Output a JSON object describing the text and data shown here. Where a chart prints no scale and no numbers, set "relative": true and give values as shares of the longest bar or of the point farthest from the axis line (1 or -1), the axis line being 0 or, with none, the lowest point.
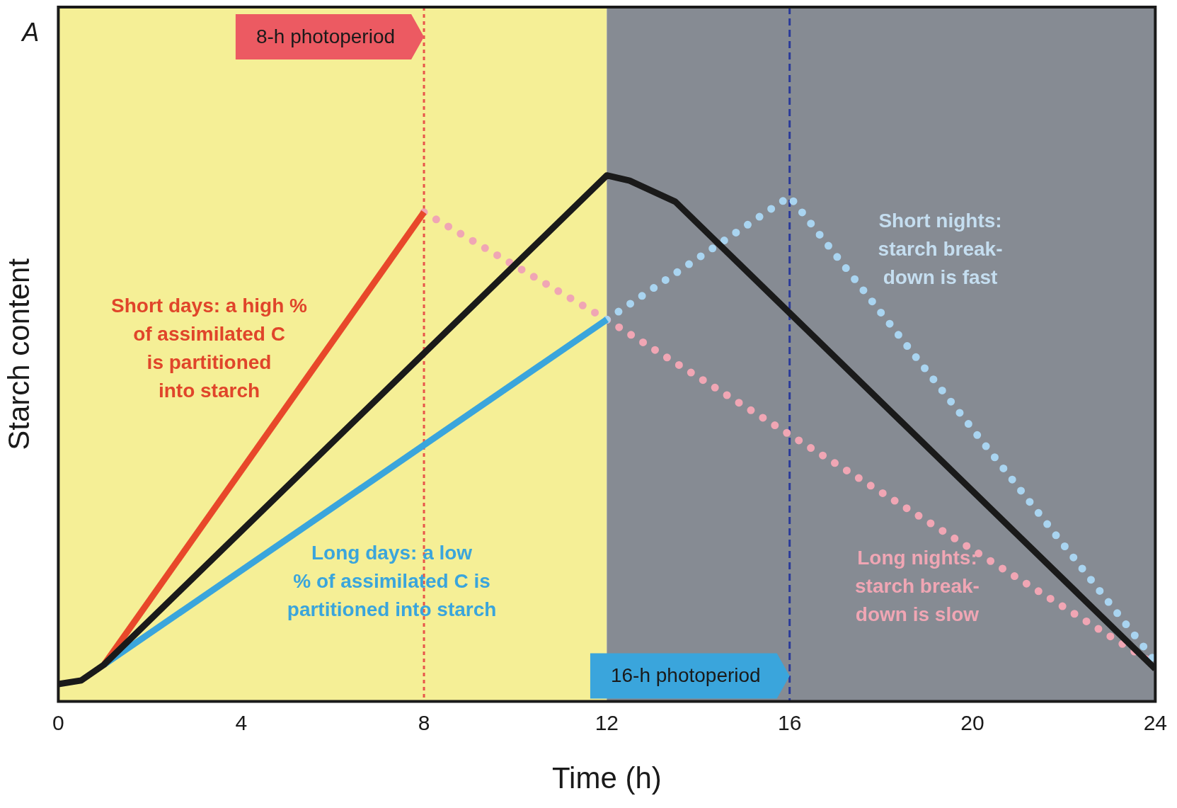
{
  "chart_data": {
    "type": "line",
    "title": "A",
    "xlabel": "Time (h)",
    "ylabel": "Starch content",
    "relative": true,
    "xlim": [
      0,
      24
    ],
    "xticks": [
      0,
      4,
      8,
      12,
      16,
      20,
      24
    ],
    "tick_labels": "x",
    "grid": false,
    "legend": false,
    "marker": "none",
    "series": [
      {
        "color": "#1a1a1a",
        "line_style": "solid",
        "x": [
          0,
          0.5,
          1,
          12,
          12.5,
          13.5,
          24
        ],
        "values": [
          0.033,
          0.04,
          0.07,
          1,
          0.99,
          0.95,
          0.062
        ]
      },
      {
        "color": "#e8482a",
        "line_style": "solid",
        "x": [
          1,
          8
        ],
        "values": [
          0.07,
          0.93
        ]
      },
      {
        "color": "#3aa5dc",
        "line_style": "solid",
        "x": [
          1,
          12
        ],
        "values": [
          0.07,
          0.726
        ]
      },
      {
        "color": "#a9d4f0",
        "line_style": "dotted",
        "x": [
          12,
          16,
          24
        ],
        "values": [
          0.726,
          0.96,
          0.076
        ]
      },
      {
        "color": "#f0a6b4",
        "line_style": "dotted",
        "x": [
          8,
          12,
          24
        ],
        "values": [
          0.93,
          0.726,
          0.07
        ]
      }
    ],
    "bands": [
      {
        "axis": "x",
        "from": 0,
        "to": 12,
        "color": "#f5ef96"
      },
      {
        "axis": "x",
        "from": 12,
        "to": 24,
        "color": "#868b93"
      }
    ],
    "ref_lines": [
      {
        "axis": "x",
        "value": 8,
        "label": "8-h photoperiod",
        "color": "#e8554a",
        "line_style": "dotted"
      },
      {
        "axis": "x",
        "value": 16,
        "label": "16-h photoperiod",
        "color": "#2a3a9a",
        "line_style": "dashed"
      }
    ],
    "annotations": [
      "Short days: a high %\nof assimilated C\nis partitioned\ninto starch",
      "Long days: a low\n% of assimilated C is\npartitioned into starch",
      "Short nights:\nstarch break-\ndown is fast",
      "Long nights:\nstarch break-\ndown is slow"
    ]
  }
}
